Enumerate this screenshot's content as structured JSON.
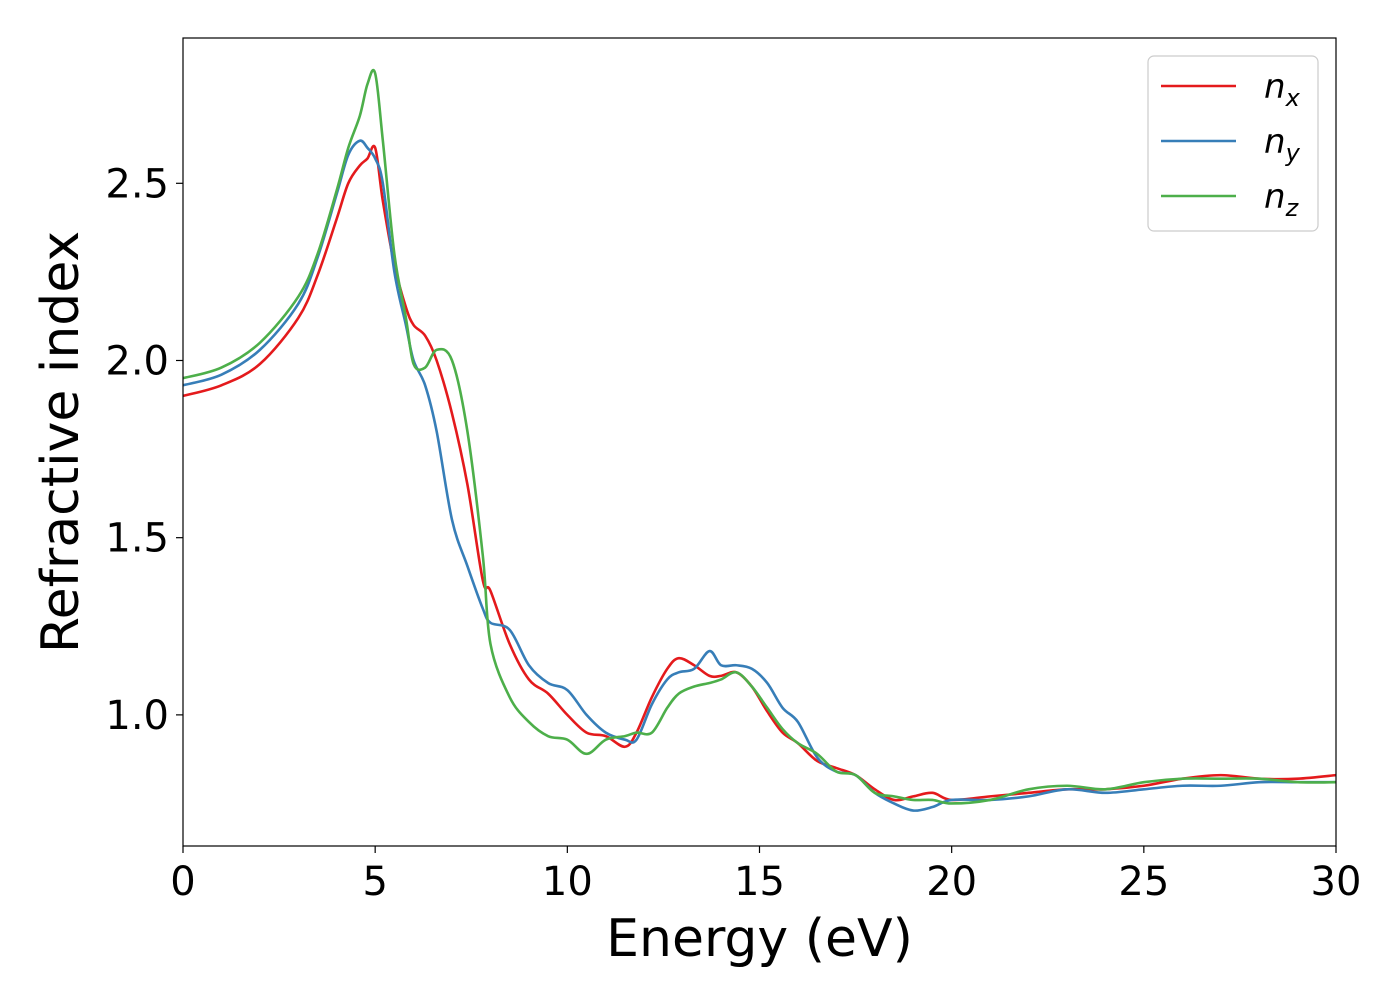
{
  "chart_data": {
    "type": "line",
    "xlabel": "Energy (eV)",
    "ylabel": "Refractive index",
    "xlim": [
      0,
      30
    ],
    "ylim": [
      0.63,
      2.91
    ],
    "xticks": [
      0,
      5,
      10,
      15,
      20,
      25,
      30
    ],
    "yticks": [
      1.0,
      1.5,
      2.0,
      2.5
    ],
    "xtick_labels": [
      "0",
      "5",
      "10",
      "15",
      "20",
      "25",
      "30"
    ],
    "ytick_labels": [
      "1.0",
      "1.5",
      "2.0",
      "2.5"
    ],
    "grid": false,
    "legend_position": "top-right",
    "series": [
      {
        "name": "n",
        "subscript": "x",
        "color": "#e41a1c",
        "x": [
          0,
          1,
          2,
          3,
          3.5,
          4,
          4.3,
          4.6,
          4.8,
          5.0,
          5.2,
          5.5,
          5.8,
          6.0,
          6.3,
          6.6,
          7.0,
          7.4,
          7.8,
          8.0,
          8.5,
          9.0,
          9.5,
          10.0,
          10.5,
          11.0,
          11.5,
          11.8,
          12.2,
          12.6,
          12.9,
          13.3,
          13.7,
          14.0,
          14.4,
          14.8,
          15.2,
          15.6,
          16.0,
          16.5,
          17.0,
          17.5,
          18.0,
          18.5,
          19.0,
          19.5,
          20.0,
          21.0,
          22.0,
          23.0,
          24.0,
          25.0,
          26.0,
          27.0,
          28.0,
          29.0,
          30.0
        ],
        "y": [
          1.9,
          1.93,
          1.99,
          2.12,
          2.24,
          2.4,
          2.5,
          2.55,
          2.57,
          2.6,
          2.45,
          2.27,
          2.15,
          2.1,
          2.07,
          2.0,
          1.85,
          1.65,
          1.38,
          1.35,
          1.2,
          1.1,
          1.06,
          1.0,
          0.95,
          0.94,
          0.91,
          0.95,
          1.05,
          1.13,
          1.16,
          1.14,
          1.11,
          1.11,
          1.12,
          1.08,
          1.01,
          0.95,
          0.92,
          0.87,
          0.85,
          0.83,
          0.79,
          0.76,
          0.77,
          0.78,
          0.76,
          0.77,
          0.78,
          0.79,
          0.79,
          0.8,
          0.82,
          0.83,
          0.82,
          0.82,
          0.83
        ]
      },
      {
        "name": "n",
        "subscript": "y",
        "color": "#377eb8",
        "x": [
          0,
          1,
          2,
          3,
          3.5,
          4,
          4.3,
          4.6,
          4.8,
          5.0,
          5.2,
          5.5,
          5.8,
          6.0,
          6.3,
          6.6,
          7.0,
          7.4,
          7.8,
          8.0,
          8.5,
          9.0,
          9.5,
          10.0,
          10.5,
          11.0,
          11.5,
          11.8,
          12.2,
          12.6,
          12.9,
          13.3,
          13.7,
          14.0,
          14.4,
          14.8,
          15.2,
          15.6,
          16.0,
          16.5,
          17.0,
          17.5,
          18.0,
          18.5,
          19.0,
          19.5,
          20.0,
          21.0,
          22.0,
          23.0,
          24.0,
          25.0,
          26.0,
          27.0,
          28.0,
          29.0,
          30.0
        ],
        "y": [
          1.93,
          1.96,
          2.03,
          2.16,
          2.29,
          2.47,
          2.58,
          2.62,
          2.6,
          2.57,
          2.5,
          2.25,
          2.1,
          2.0,
          1.93,
          1.8,
          1.55,
          1.42,
          1.3,
          1.26,
          1.24,
          1.14,
          1.09,
          1.07,
          1.0,
          0.95,
          0.93,
          0.93,
          1.03,
          1.1,
          1.12,
          1.13,
          1.18,
          1.14,
          1.14,
          1.13,
          1.09,
          1.02,
          0.98,
          0.88,
          0.84,
          0.83,
          0.78,
          0.75,
          0.73,
          0.74,
          0.76,
          0.76,
          0.77,
          0.79,
          0.78,
          0.79,
          0.8,
          0.8,
          0.81,
          0.81,
          0.81
        ]
      },
      {
        "name": "n",
        "subscript": "z",
        "color": "#4daf4a",
        "x": [
          0,
          1,
          2,
          3,
          3.5,
          4,
          4.3,
          4.6,
          4.8,
          5.0,
          5.2,
          5.5,
          5.8,
          6.0,
          6.3,
          6.6,
          7.0,
          7.4,
          7.8,
          8.0,
          8.5,
          9.0,
          9.5,
          10.0,
          10.5,
          11.0,
          11.5,
          11.8,
          12.2,
          12.6,
          12.9,
          13.3,
          13.7,
          14.0,
          14.4,
          14.8,
          15.2,
          15.6,
          16.0,
          16.5,
          17.0,
          17.5,
          18.0,
          18.5,
          19.0,
          19.5,
          20.0,
          21.0,
          22.0,
          23.0,
          24.0,
          25.0,
          26.0,
          27.0,
          28.0,
          29.0,
          30.0
        ],
        "y": [
          1.95,
          1.98,
          2.05,
          2.18,
          2.3,
          2.48,
          2.6,
          2.69,
          2.78,
          2.81,
          2.62,
          2.3,
          2.12,
          1.99,
          1.98,
          2.03,
          2.0,
          1.8,
          1.45,
          1.2,
          1.05,
          0.98,
          0.94,
          0.93,
          0.89,
          0.93,
          0.94,
          0.95,
          0.95,
          1.02,
          1.06,
          1.08,
          1.09,
          1.1,
          1.12,
          1.08,
          1.02,
          0.96,
          0.92,
          0.89,
          0.84,
          0.83,
          0.78,
          0.77,
          0.76,
          0.76,
          0.75,
          0.76,
          0.79,
          0.8,
          0.79,
          0.81,
          0.82,
          0.82,
          0.82,
          0.81,
          0.81
        ]
      }
    ]
  }
}
